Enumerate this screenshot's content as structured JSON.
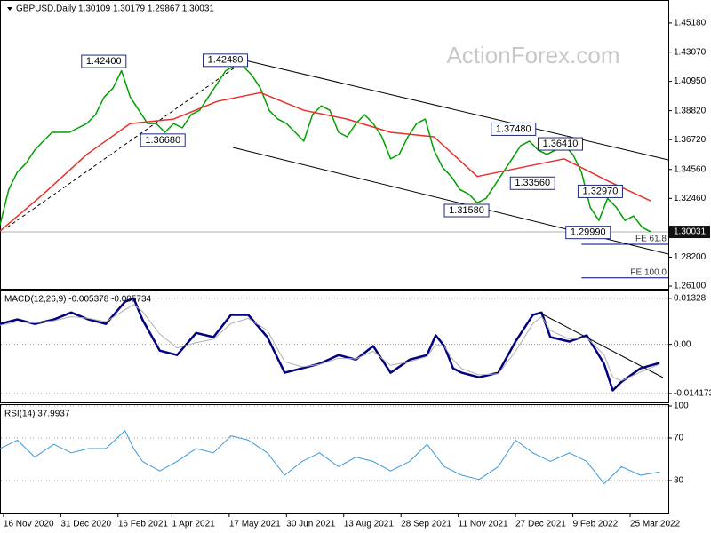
{
  "chart_data": [
    {
      "type": "line",
      "title": "GBPUSD,Daily 1.30109 1.30179 1.29867 1.30031",
      "watermark": "ActionForex.com",
      "xlim": [
        0,
        385
      ],
      "ylim": [
        1.2591,
        1.4685
      ],
      "yticks": [
        {
          "value": 1.4518,
          "label": "1.45180"
        },
        {
          "value": 1.4307,
          "label": "1.43070"
        },
        {
          "value": 1.4095,
          "label": "1.40950"
        },
        {
          "value": 1.3882,
          "label": "1.38820"
        },
        {
          "value": 1.3672,
          "label": "1.36720"
        },
        {
          "value": 1.3456,
          "label": "1.34560"
        },
        {
          "value": 1.3246,
          "label": "1.32460"
        },
        {
          "value": 1.282,
          "label": "1.28200"
        },
        {
          "value": 1.261,
          "label": "1.26100"
        }
      ],
      "grid": false,
      "last_price": 1.30031,
      "series": [
        {
          "color": "#00a000",
          "x": [
            0,
            5,
            10,
            15,
            20,
            25,
            30,
            35,
            40,
            45,
            50,
            55,
            60,
            65,
            70,
            75,
            80,
            85,
            90,
            95,
            100,
            105,
            110,
            115,
            120,
            125,
            130,
            135,
            140,
            145,
            150,
            155,
            160,
            165,
            170,
            175,
            180,
            185,
            190,
            195,
            200,
            205,
            210,
            215,
            220,
            225,
            230,
            235,
            240,
            245,
            250,
            255,
            260,
            265,
            270,
            275,
            280,
            285,
            290,
            295,
            300,
            305,
            310,
            315,
            320,
            325,
            330,
            335,
            340,
            345,
            350,
            355,
            360,
            365,
            370,
            375
          ],
          "values": [
            1.3054,
            1.331,
            1.3437,
            1.3501,
            1.3597,
            1.3661,
            1.3725,
            1.3725,
            1.3725,
            1.3757,
            1.3789,
            1.3853,
            1.3981,
            1.4045,
            1.4173,
            1.3981,
            1.3885,
            1.3789,
            1.3789,
            1.3725,
            1.3789,
            1.3757,
            1.3853,
            1.3885,
            1.3981,
            1.4077,
            1.4173,
            1.4205,
            1.4205,
            1.4141,
            1.4045,
            1.3885,
            1.3821,
            1.3789,
            1.3725,
            1.3661,
            1.3853,
            1.3917,
            1.3885,
            1.3725,
            1.3693,
            1.3789,
            1.3853,
            1.3789,
            1.3693,
            1.3533,
            1.3565,
            1.3693,
            1.3789,
            1.3821,
            1.3597,
            1.3469,
            1.3405,
            1.331,
            1.3278,
            1.3214,
            1.3246,
            1.3341,
            1.3437,
            1.3533,
            1.3629,
            1.3661,
            1.3597,
            1.3565,
            1.3597,
            1.3629,
            1.3565,
            1.3437,
            1.3182,
            1.3086,
            1.3246,
            1.3182,
            1.3086,
            1.3118,
            1.3035,
            1.3003
          ]
        },
        {
          "color": "#e8302a",
          "x": [
            0,
            25,
            50,
            75,
            100,
            125,
            150,
            175,
            200,
            225,
            250,
            275,
            300,
            325,
            350,
            375
          ],
          "values": [
            1.3009,
            1.3278,
            1.3565,
            1.3789,
            1.3821,
            1.3949,
            1.4013,
            1.3885,
            1.3821,
            1.3725,
            1.3693,
            1.3405,
            1.3469,
            1.3533,
            1.3373,
            1.3227
          ]
        }
      ],
      "annotations": [
        {
          "x": 47,
          "value": 1.424,
          "label": "1.42400"
        },
        {
          "x": 117,
          "value": 1.4248,
          "label": "1.42480"
        },
        {
          "x": 81,
          "value": 1.3668,
          "label": "1.36680"
        },
        {
          "x": 283,
          "value": 1.3748,
          "label": "1.37480"
        },
        {
          "x": 310,
          "value": 1.3641,
          "label": "1.36410"
        },
        {
          "x": 294,
          "value": 1.3356,
          "label": "1.33560"
        },
        {
          "x": 333,
          "value": 1.3297,
          "label": "1.32970"
        },
        {
          "x": 256,
          "value": 1.3158,
          "label": "1.31580"
        },
        {
          "x": 326,
          "value": 1.2999,
          "label": "1.29990"
        }
      ],
      "fib_levels": [
        {
          "x": 335,
          "price": 1.2913,
          "text": "FE 61.8"
        },
        {
          "x": 335,
          "price": 1.267,
          "text": "FE 100.0"
        }
      ]
    },
    {
      "type": "line",
      "title": "MACD(12,26,9) -0.005378 -0.005734",
      "xlim": [
        0,
        385
      ],
      "ylim": [
        -0.0165,
        0.0153
      ],
      "yticks": [
        0.01328,
        {
          "value": 0,
          "label": "0.00"
        },
        -0.014173
      ],
      "grid": true,
      "series": [
        {
          "color": "#000080",
          "width": 2.5,
          "x": [
            0,
            10,
            20,
            31,
            41,
            51,
            61,
            72,
            77,
            82,
            92,
            102,
            113,
            123,
            133,
            143,
            154,
            164,
            174,
            184,
            195,
            205,
            215,
            225,
            236,
            246,
            251,
            256,
            261,
            266,
            276,
            287,
            297,
            307,
            312,
            317,
            328,
            338,
            348,
            353,
            358,
            369,
            380
          ],
          "values": [
            0.0059,
            0.0072,
            0.0059,
            0.0072,
            0.0092,
            0.0072,
            0.0059,
            0.0123,
            0.0133,
            0.0072,
            -0.0018,
            -0.0031,
            0.0033,
            0.0021,
            0.0085,
            0.0085,
            0.0021,
            -0.0082,
            -0.0069,
            -0.0056,
            -0.0031,
            -0.0044,
            -0.0005,
            -0.0082,
            -0.0044,
            -0.0031,
            0.0026,
            -0.0005,
            -0.0069,
            -0.0082,
            -0.0095,
            -0.0082,
            0.0008,
            0.0085,
            0.0092,
            0.0021,
            0.0008,
            0.0026,
            -0.0056,
            -0.0133,
            -0.0108,
            -0.0069,
            -0.005378
          ]
        },
        {
          "color": "#b0b0b0",
          "width": 1,
          "x": [
            0,
            10,
            20,
            31,
            41,
            51,
            61,
            72,
            77,
            82,
            92,
            102,
            113,
            123,
            133,
            143,
            154,
            164,
            174,
            184,
            195,
            205,
            215,
            225,
            236,
            246,
            251,
            256,
            261,
            266,
            276,
            287,
            297,
            307,
            312,
            317,
            328,
            338,
            348,
            353,
            358,
            369,
            380
          ],
          "values": [
            0.0055,
            0.0065,
            0.0062,
            0.0068,
            0.008,
            0.0075,
            0.0065,
            0.01,
            0.0115,
            0.0095,
            0.003,
            -0.001,
            0.0005,
            0.0015,
            0.006,
            0.0075,
            0.004,
            -0.005,
            -0.0065,
            -0.0058,
            -0.004,
            -0.0042,
            -0.002,
            -0.006,
            -0.005,
            -0.0035,
            0.0,
            -0.0005,
            -0.0045,
            -0.007,
            -0.0088,
            -0.0085,
            -0.002,
            0.006,
            0.008,
            0.004,
            0.0015,
            0.002,
            -0.003,
            -0.0095,
            -0.0105,
            -0.008,
            -0.005734
          ]
        }
      ]
    },
    {
      "type": "line",
      "title": "RSI(14) 37.9937",
      "xlim": [
        0,
        385
      ],
      "ylim": [
        0,
        100
      ],
      "yticks": [
        100,
        70,
        30
      ],
      "grid": true,
      "xticks": [
        {
          "value": 2,
          "label": "16 Nov 2020"
        },
        {
          "value": 35,
          "label": "31 Dec 2020"
        },
        {
          "value": 68,
          "label": "16 Feb 2021"
        },
        {
          "value": 99,
          "label": "1 Apr 2021"
        },
        {
          "value": 132,
          "label": "17 May 2021"
        },
        {
          "value": 165,
          "label": "30 Jun 2021"
        },
        {
          "value": 198,
          "label": "13 Aug 2021"
        },
        {
          "value": 231,
          "label": "28 Sep 2021"
        },
        {
          "value": 264,
          "label": "11 Nov 2021"
        },
        {
          "value": 297,
          "label": "27 Dec 2021"
        },
        {
          "value": 330,
          "label": "9 Feb 2022"
        },
        {
          "value": 363,
          "label": "25 Mar 2022"
        }
      ],
      "series": [
        {
          "color": "#3a9ad9",
          "width": 1,
          "x": [
            0,
            10,
            20,
            31,
            41,
            51,
            61,
            72,
            77,
            82,
            92,
            102,
            113,
            123,
            133,
            143,
            154,
            164,
            174,
            184,
            195,
            205,
            215,
            225,
            236,
            246,
            256,
            266,
            276,
            287,
            297,
            307,
            317,
            328,
            338,
            348,
            358,
            369,
            380
          ],
          "values": [
            60,
            68,
            52,
            64,
            56,
            60,
            60,
            77,
            60,
            48,
            39,
            48,
            60,
            56,
            72,
            68,
            56,
            35,
            48,
            56,
            43,
            52,
            48,
            39,
            48,
            64,
            43,
            35,
            31,
            43,
            68,
            56,
            48,
            56,
            48,
            27,
            43,
            35,
            37.9937
          ]
        }
      ]
    }
  ]
}
